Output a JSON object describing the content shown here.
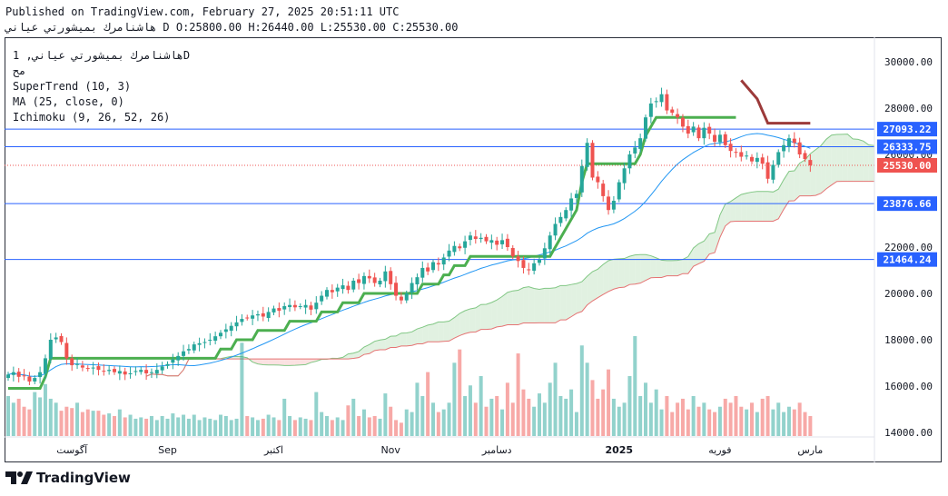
{
  "header": {
    "published": "Published on TradingView.com, February 27, 2025 20:51:11 UTC",
    "symbol_line": "هاشنامرك بميشورتي عياني D O:25800.00 H:26440.00 L:25530.00 C:25530.00"
  },
  "legend": {
    "line1": "هاشنامرك بميشورتي عياني, 1D",
    "line2": "مح",
    "line3": "SuperTrend (10, 3)",
    "line4": "MA (25, close, 0)",
    "line5": "Ichimoku (9, 26, 52, 26)"
  },
  "brand": {
    "name": "TradingView"
  },
  "colors": {
    "up": "#26a69a",
    "down": "#ef5350",
    "supertrend_up": "#4caf50",
    "supertrend_down": "#9c3a3a",
    "ma": "#2196f3",
    "cloud_bull": "#c8e6c9",
    "cloud_bear": "#f8c8c8",
    "hline": "#2962ff"
  },
  "chart_data": {
    "type": "candlestick",
    "y_axis": {
      "min": 14000,
      "max": 30000,
      "ticks": [
        "14000.00",
        "16000.00",
        "18000.00",
        "20000.00",
        "22000.00",
        "24000.00",
        "26000.00",
        "28000.00",
        "30000.00"
      ]
    },
    "x_labels": [
      {
        "label": "آگوست",
        "idx": 12
      },
      {
        "label": "Sep",
        "idx": 30
      },
      {
        "label": "اکتبر",
        "idx": 50
      },
      {
        "label": "Nov",
        "idx": 72
      },
      {
        "label": "دسامبر",
        "idx": 92
      },
      {
        "label": "2025",
        "idx": 115
      },
      {
        "label": "فوریه",
        "idx": 134
      },
      {
        "label": "مارس",
        "idx": 151
      }
    ],
    "horizontal_lines": [
      {
        "value": 27093.22,
        "label": "27093.22",
        "color": "#2962ff"
      },
      {
        "value": 26333.75,
        "label": "26333.75",
        "color": "#2962ff"
      },
      {
        "value": 23876.66,
        "label": "23876.66",
        "color": "#2962ff"
      },
      {
        "value": 21464.24,
        "label": "21464.24",
        "color": "#2962ff"
      },
      {
        "value": 25530.0,
        "label": "25530.00",
        "color": "#ef5350",
        "dotted": true
      }
    ],
    "closes": [
      16500,
      16600,
      16400,
      16450,
      16200,
      16350,
      16600,
      17200,
      18000,
      18100,
      17900,
      17200,
      16900,
      16950,
      16800,
      16750,
      16800,
      16700,
      16650,
      16700,
      16600,
      16650,
      16500,
      16550,
      16650,
      16700,
      16550,
      16600,
      16700,
      16850,
      16950,
      17150,
      17300,
      17500,
      17600,
      17800,
      17850,
      17900,
      18000,
      18150,
      18300,
      18450,
      18600,
      18750,
      18900,
      18950,
      19050,
      19100,
      19000,
      19200,
      19350,
      19250,
      19450,
      19500,
      19400,
      19450,
      19500,
      19300,
      19600,
      19900,
      20150,
      20050,
      20250,
      20350,
      20150,
      20550,
      20450,
      20750,
      20650,
      20450,
      20550,
      20950,
      20400,
      19900,
      19700,
      20000,
      20450,
      20700,
      21100,
      20950,
      21350,
      21250,
      21550,
      21850,
      22050,
      21950,
      22250,
      22500,
      22350,
      22400,
      22250,
      22300,
      22100,
      22300,
      22000,
      21600,
      21400,
      21100,
      21000,
      21300,
      21450,
      21950,
      22500,
      23000,
      23300,
      23600,
      24100,
      24300,
      25500,
      26500,
      25000,
      24800,
      24200,
      23600,
      24000,
      24800,
      25400,
      26000,
      26300,
      26700,
      27600,
      28200,
      28300,
      28600,
      27900,
      27800,
      27600,
      27200,
      26900,
      27200,
      26700,
      27150,
      26900,
      26550,
      26850,
      26400,
      26150,
      26100,
      25900,
      25950,
      25700,
      25850,
      25600,
      24950,
      25550,
      26100,
      26400,
      26700,
      26500,
      26000,
      25800,
      25530
    ],
    "volumes": [
      30,
      25,
      28,
      22,
      20,
      33,
      29,
      39,
      28,
      25,
      19,
      22,
      21,
      25,
      18,
      20,
      19,
      19,
      16,
      17,
      15,
      20,
      14,
      16,
      13,
      14,
      13,
      15,
      12,
      15,
      13,
      17,
      14,
      16,
      13,
      16,
      12,
      14,
      13,
      12,
      16,
      15,
      12,
      13,
      70,
      15,
      14,
      12,
      13,
      16,
      14,
      12,
      28,
      15,
      12,
      14,
      13,
      12,
      33,
      18,
      15,
      12,
      14,
      12,
      23,
      28,
      15,
      20,
      14,
      15,
      13,
      32,
      22,
      12,
      10,
      20,
      18,
      40,
      30,
      48,
      25,
      18,
      20,
      25,
      55,
      65,
      30,
      38,
      25,
      45,
      22,
      28,
      30,
      20,
      40,
      25,
      62,
      35,
      28,
      22,
      32,
      25,
      40,
      55,
      30,
      28,
      35,
      18,
      68,
      55,
      42,
      28,
      35,
      50,
      28,
      22,
      25,
      45,
      75,
      30,
      40,
      25,
      35,
      20,
      30,
      18,
      25,
      28,
      20,
      30,
      22,
      25,
      20,
      18,
      22,
      28,
      25,
      30,
      22,
      20,
      25,
      18,
      28,
      30,
      20,
      25,
      18,
      22,
      20,
      25,
      18,
      15
    ]
  }
}
